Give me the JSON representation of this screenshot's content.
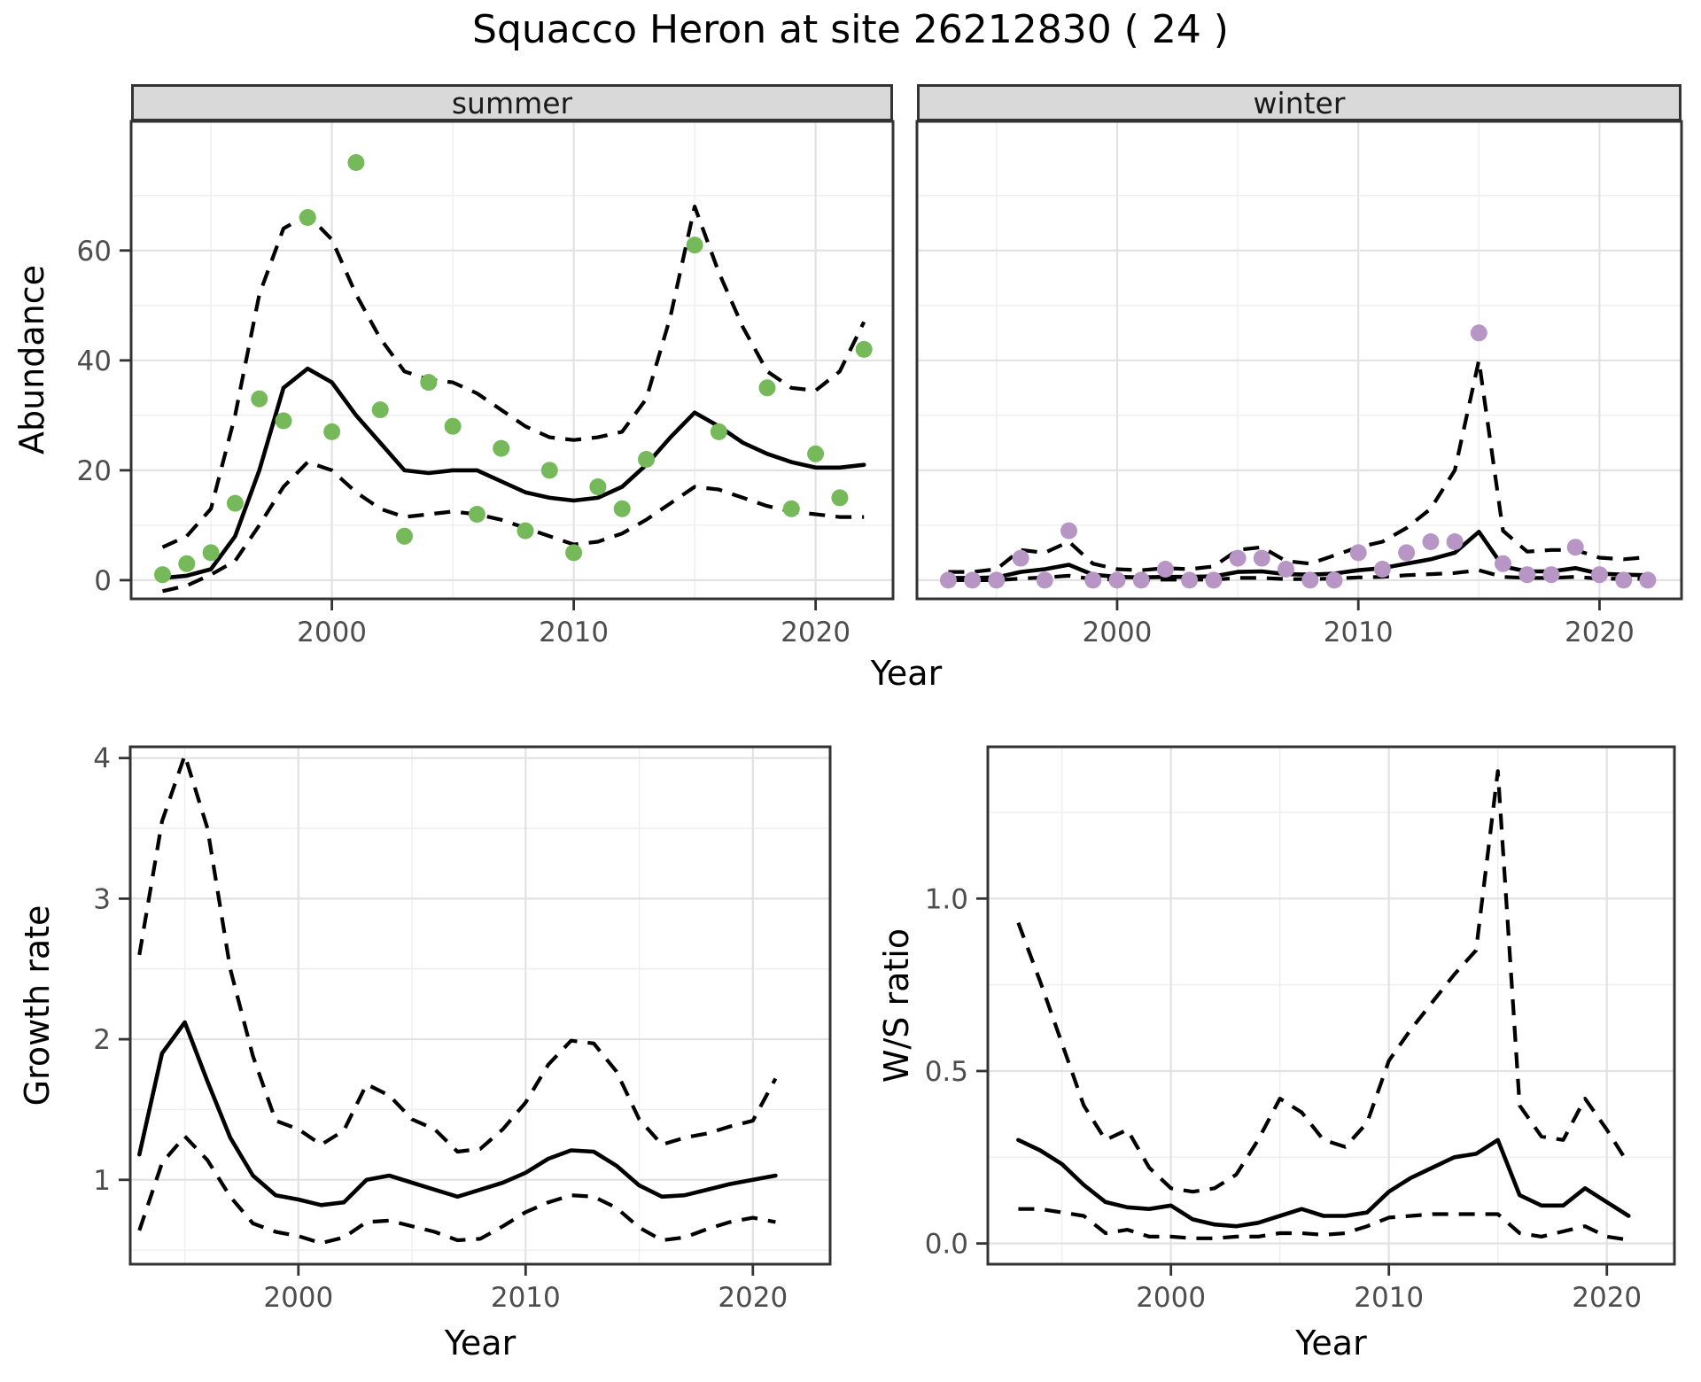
{
  "title": "Squacco Heron at site 26212830 ( 24 )",
  "axes": {
    "x_title": "Year",
    "y_title_abundance": "Abundance",
    "y_title_growth": "Growth rate",
    "y_title_ws": "W/S ratio"
  },
  "colors": {
    "summer_point": "#76B95A",
    "winter_point": "#B795C5",
    "line": "#000000",
    "panel_border": "#333333",
    "strip_bg": "#D9D9D9",
    "grid_major": "#E2E2E2",
    "grid_minor": "#EFEFEF",
    "tick_label": "#4D4D4D"
  },
  "chart_data": [
    {
      "type": "line",
      "name": "abundance-summer",
      "svg": "summer-plot",
      "title_strip": "summer",
      "xlabel": "Year",
      "ylabel": "Abundance",
      "xlim": [
        1991.7,
        2023.2
      ],
      "ylim": [
        -3.4,
        83.5
      ],
      "x_ticks": [
        {
          "v": 2000,
          "label": "2000"
        },
        {
          "v": 2010,
          "label": "2010"
        },
        {
          "v": 2020,
          "label": "2020"
        }
      ],
      "y_ticks": [
        {
          "v": 0,
          "label": "0"
        },
        {
          "v": 20,
          "label": "20"
        },
        {
          "v": 40,
          "label": "40"
        },
        {
          "v": 60,
          "label": "60"
        }
      ],
      "x_minor": [
        1995,
        2005,
        2015
      ],
      "y_minor": [
        10,
        30,
        50,
        70
      ],
      "show_y_labels": true,
      "grid": true,
      "legend": "none",
      "years": [
        1993,
        1994,
        1995,
        1996,
        1997,
        1998,
        1999,
        2000,
        2001,
        2002,
        2003,
        2004,
        2005,
        2006,
        2007,
        2008,
        2009,
        2010,
        2011,
        2012,
        2013,
        2014,
        2015,
        2016,
        2017,
        2018,
        2019,
        2020,
        2021,
        2022
      ],
      "series": [
        {
          "name": "mean",
          "style": "solid",
          "values": [
            0.4,
            0.8,
            2,
            8,
            20,
            35,
            38.5,
            36,
            30,
            25,
            20,
            19.5,
            20,
            20,
            18,
            16,
            15,
            14.5,
            15,
            17,
            21,
            26,
            30.5,
            28,
            25,
            23,
            21.5,
            20.5,
            20.5,
            21
          ]
        },
        {
          "name": "upper95",
          "style": "dashed",
          "values": [
            6,
            8,
            13,
            30,
            52,
            64,
            66.5,
            62,
            52,
            44,
            38,
            36.5,
            36,
            34,
            31,
            28,
            26,
            25.5,
            26,
            27,
            33,
            48,
            68,
            56,
            46,
            38,
            35,
            34.5,
            38,
            47
          ]
        },
        {
          "name": "lower95",
          "style": "dashed",
          "values": [
            -2,
            -1,
            1,
            3.5,
            10,
            17,
            21.5,
            20,
            16,
            13,
            11.5,
            12,
            12.5,
            12,
            11,
            9.5,
            8,
            6.5,
            7,
            8.5,
            11,
            14,
            17,
            16.5,
            15,
            13.5,
            12.5,
            12,
            11.5,
            11.5
          ]
        }
      ],
      "points": {
        "name": "observed-counts-summer",
        "color_key": "summer_point",
        "years": [
          1993,
          1994,
          1995,
          1996,
          1997,
          1998,
          1999,
          2000,
          2001,
          2002,
          2003,
          2004,
          2005,
          2006,
          2007,
          2008,
          2009,
          2010,
          2011,
          2012,
          2013,
          2015,
          2016,
          2018,
          2019,
          2020,
          2021,
          2022
        ],
        "values": [
          1,
          3,
          5,
          14,
          33,
          29,
          66,
          27,
          76,
          31,
          8,
          36,
          28,
          12,
          24,
          9,
          20,
          5,
          17,
          13,
          22,
          61,
          27,
          35,
          13,
          23,
          15,
          42
        ]
      }
    },
    {
      "type": "line",
      "name": "abundance-winter",
      "svg": "winter-plot",
      "title_strip": "winter",
      "xlabel": "Year",
      "ylabel": "Abundance",
      "xlim": [
        1991.7,
        2023.4
      ],
      "ylim": [
        -3.4,
        83.5
      ],
      "x_ticks": [
        {
          "v": 2000,
          "label": "2000"
        },
        {
          "v": 2010,
          "label": "2010"
        },
        {
          "v": 2020,
          "label": "2020"
        }
      ],
      "y_ticks": [
        {
          "v": 0,
          "label": ""
        },
        {
          "v": 20,
          "label": ""
        },
        {
          "v": 40,
          "label": ""
        },
        {
          "v": 60,
          "label": ""
        }
      ],
      "x_minor": [
        1995,
        2005,
        2015
      ],
      "y_minor": [
        10,
        30,
        50,
        70
      ],
      "show_y_labels": false,
      "grid": true,
      "legend": "none",
      "years": [
        1993,
        1994,
        1995,
        1996,
        1997,
        1998,
        1999,
        2000,
        2001,
        2002,
        2003,
        2004,
        2005,
        2006,
        2007,
        2008,
        2009,
        2010,
        2011,
        2012,
        2013,
        2014,
        2015,
        2016,
        2017,
        2018,
        2019,
        2020,
        2021,
        2022
      ],
      "series": [
        {
          "name": "mean",
          "style": "solid",
          "values": [
            0.4,
            0.4,
            0.5,
            1.5,
            2,
            2.8,
            1,
            0.6,
            0.5,
            0.6,
            0.6,
            0.7,
            1.5,
            1.6,
            1.1,
            1,
            1.2,
            1.8,
            2.2,
            3,
            3.8,
            5,
            8.8,
            2.5,
            1.6,
            1.6,
            2.2,
            1.2,
            1,
            0.9
          ]
        },
        {
          "name": "upper95",
          "style": "dashed",
          "values": [
            1.5,
            1.5,
            2,
            5.5,
            5,
            7,
            3,
            2,
            1.8,
            2.2,
            2,
            2.5,
            5.5,
            6,
            3.5,
            3,
            4.5,
            6,
            7,
            9.5,
            13,
            20,
            40,
            9,
            5.2,
            5.5,
            5.5,
            4.1,
            3.8,
            4.2
          ]
        },
        {
          "name": "lower95",
          "style": "dashed",
          "values": [
            0,
            0,
            0,
            0.3,
            0.5,
            0.8,
            0.2,
            0.1,
            0.1,
            0.1,
            0.1,
            0.1,
            0.4,
            0.4,
            0.2,
            0.2,
            0.3,
            0.5,
            0.6,
            0.9,
            1.1,
            1.3,
            1.8,
            0.6,
            0.4,
            0.4,
            0.6,
            0.3,
            0.25,
            0.25
          ]
        }
      ],
      "points": {
        "name": "observed-counts-winter",
        "color_key": "winter_point",
        "years": [
          1993,
          1994,
          1995,
          1996,
          1997,
          1998,
          1999,
          2000,
          2001,
          2002,
          2003,
          2004,
          2005,
          2006,
          2007,
          2008,
          2009,
          2010,
          2011,
          2012,
          2013,
          2014,
          2015,
          2016,
          2017,
          2018,
          2019,
          2020,
          2021,
          2022
        ],
        "values": [
          0,
          0,
          0,
          4,
          0,
          9,
          0,
          0,
          0,
          2,
          0,
          0,
          4,
          4,
          2,
          0,
          0,
          5,
          2,
          5,
          7,
          7,
          45,
          3,
          1,
          1,
          6,
          1,
          0,
          0
        ]
      }
    },
    {
      "type": "line",
      "name": "growth-rate",
      "svg": "growth-plot",
      "title_strip": "",
      "xlabel": "Year",
      "ylabel": "Growth rate",
      "xlim": [
        1992.6,
        2023.4
      ],
      "ylim": [
        0.4,
        4.08
      ],
      "x_ticks": [
        {
          "v": 2000,
          "label": "2000"
        },
        {
          "v": 2010,
          "label": "2010"
        },
        {
          "v": 2020,
          "label": "2020"
        }
      ],
      "y_ticks": [
        {
          "v": 1,
          "label": "1"
        },
        {
          "v": 2,
          "label": "2"
        },
        {
          "v": 3,
          "label": "3"
        },
        {
          "v": 4,
          "label": "4"
        }
      ],
      "x_minor": [
        1995,
        2005,
        2015
      ],
      "y_minor": [
        0.5,
        1.5,
        2.5,
        3.5
      ],
      "show_y_labels": true,
      "grid": true,
      "legend": "none",
      "years": [
        1993,
        1994,
        1995,
        1996,
        1997,
        1998,
        1999,
        2000,
        2001,
        2002,
        2003,
        2004,
        2005,
        2006,
        2007,
        2008,
        2009,
        2010,
        2011,
        2012,
        2013,
        2014,
        2015,
        2016,
        2017,
        2018,
        2019,
        2020,
        2021
      ],
      "series": [
        {
          "name": "mean",
          "style": "solid",
          "values": [
            1.18,
            1.9,
            2.12,
            1.7,
            1.3,
            1.03,
            0.89,
            0.86,
            0.82,
            0.84,
            1.0,
            1.03,
            0.98,
            0.93,
            0.88,
            0.93,
            0.98,
            1.05,
            1.15,
            1.21,
            1.2,
            1.1,
            0.96,
            0.88,
            0.89,
            0.93,
            0.97,
            1.0,
            1.03
          ]
        },
        {
          "name": "upper95",
          "style": "dashed",
          "values": [
            2.6,
            3.55,
            4.02,
            3.5,
            2.5,
            1.88,
            1.42,
            1.36,
            1.25,
            1.35,
            1.68,
            1.6,
            1.43,
            1.36,
            1.2,
            1.22,
            1.36,
            1.55,
            1.82,
            1.99,
            1.97,
            1.77,
            1.43,
            1.25,
            1.3,
            1.33,
            1.38,
            1.42,
            1.72
          ]
        },
        {
          "name": "lower95",
          "style": "dashed",
          "values": [
            0.64,
            1.12,
            1.31,
            1.14,
            0.88,
            0.69,
            0.63,
            0.6,
            0.55,
            0.59,
            0.7,
            0.71,
            0.67,
            0.63,
            0.57,
            0.58,
            0.67,
            0.77,
            0.84,
            0.89,
            0.88,
            0.8,
            0.66,
            0.57,
            0.59,
            0.65,
            0.7,
            0.73,
            0.7
          ]
        }
      ],
      "points": null
    },
    {
      "type": "line",
      "name": "winter-summer-ratio",
      "svg": "ws-plot",
      "title_strip": "",
      "xlabel": "Year",
      "ylabel": "W/S ratio",
      "xlim": [
        1991.6,
        2023.1
      ],
      "ylim": [
        -0.06,
        1.44
      ],
      "x_ticks": [
        {
          "v": 2000,
          "label": "2000"
        },
        {
          "v": 2010,
          "label": "2010"
        },
        {
          "v": 2020,
          "label": "2020"
        }
      ],
      "y_ticks": [
        {
          "v": 0,
          "label": "0.0"
        },
        {
          "v": 0.5,
          "label": "0.5"
        },
        {
          "v": 1,
          "label": "1.0"
        }
      ],
      "x_minor": [
        1995,
        2005,
        2015
      ],
      "y_minor": [
        0.25,
        0.75,
        1.25
      ],
      "show_y_labels": true,
      "grid": true,
      "legend": "none",
      "years": [
        1993,
        1994,
        1995,
        1996,
        1997,
        1998,
        1999,
        2000,
        2001,
        2002,
        2003,
        2004,
        2005,
        2006,
        2007,
        2008,
        2009,
        2010,
        2011,
        2012,
        2013,
        2014,
        2015,
        2016,
        2017,
        2018,
        2019,
        2020,
        2021
      ],
      "series": [
        {
          "name": "mean",
          "style": "solid",
          "values": [
            0.3,
            0.27,
            0.23,
            0.17,
            0.12,
            0.105,
            0.1,
            0.11,
            0.07,
            0.055,
            0.05,
            0.06,
            0.08,
            0.1,
            0.08,
            0.08,
            0.09,
            0.15,
            0.19,
            0.22,
            0.25,
            0.26,
            0.3,
            0.14,
            0.11,
            0.11,
            0.16,
            0.12,
            0.08
          ]
        },
        {
          "name": "upper95",
          "style": "dashed",
          "values": [
            0.93,
            0.76,
            0.58,
            0.4,
            0.3,
            0.33,
            0.22,
            0.16,
            0.15,
            0.16,
            0.2,
            0.3,
            0.42,
            0.38,
            0.3,
            0.28,
            0.35,
            0.53,
            0.62,
            0.7,
            0.78,
            0.85,
            1.37,
            0.4,
            0.31,
            0.3,
            0.42,
            0.33,
            0.23
          ]
        },
        {
          "name": "lower95",
          "style": "dashed",
          "values": [
            0.1,
            0.1,
            0.09,
            0.08,
            0.03,
            0.04,
            0.02,
            0.02,
            0.015,
            0.015,
            0.02,
            0.02,
            0.03,
            0.03,
            0.025,
            0.03,
            0.05,
            0.075,
            0.08,
            0.085,
            0.085,
            0.085,
            0.085,
            0.03,
            0.02,
            0.035,
            0.05,
            0.02,
            0.01
          ]
        }
      ],
      "points": null
    }
  ]
}
